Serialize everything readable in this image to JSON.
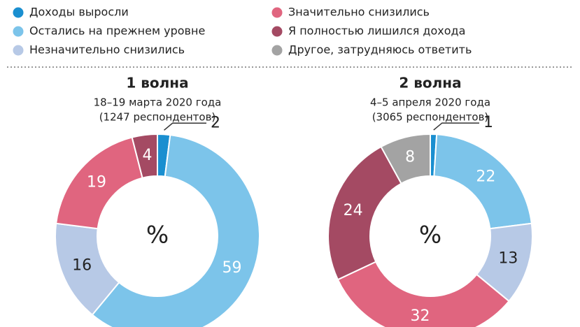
{
  "legend": [
    {
      "name": "Доходы выросли",
      "color": "#1a8fd0"
    },
    {
      "name": "Остались на прежнем уровне",
      "color": "#7cc4ea"
    },
    {
      "name": "Незначительно снизились",
      "color": "#b7c9e6"
    },
    {
      "name": "Значительно снизились",
      "color": "#e0657f"
    },
    {
      "name": "Я полностью лишился дохода",
      "color": "#a44a63"
    },
    {
      "name": "Другое, затрудняюсь ответить",
      "color": "#a3a3a3"
    }
  ],
  "chart_data": [
    {
      "type": "pie",
      "title": "1 волна",
      "subtitle": "18–19 марта 2020 года",
      "note": "(1247 респондентов)",
      "center_label": "%",
      "values": [
        2,
        59,
        16,
        19,
        4
      ],
      "colors": [
        "#1a8fd0",
        "#7cc4ea",
        "#b7c9e6",
        "#e0657f",
        "#a44a63"
      ],
      "text_colors": [
        "#222222",
        "#ffffff",
        "#222222",
        "#ffffff",
        "#ffffff"
      ]
    },
    {
      "type": "pie",
      "title": "2 волна",
      "subtitle": "4–5 апреля 2020 года",
      "note": "(3065 респондентов)",
      "center_label": "%",
      "values": [
        1,
        22,
        13,
        32,
        24,
        8
      ],
      "colors": [
        "#1a8fd0",
        "#7cc4ea",
        "#b7c9e6",
        "#e0657f",
        "#a44a63",
        "#a3a3a3"
      ],
      "text_colors": [
        "#222222",
        "#ffffff",
        "#222222",
        "#ffffff",
        "#ffffff",
        "#ffffff"
      ]
    }
  ]
}
